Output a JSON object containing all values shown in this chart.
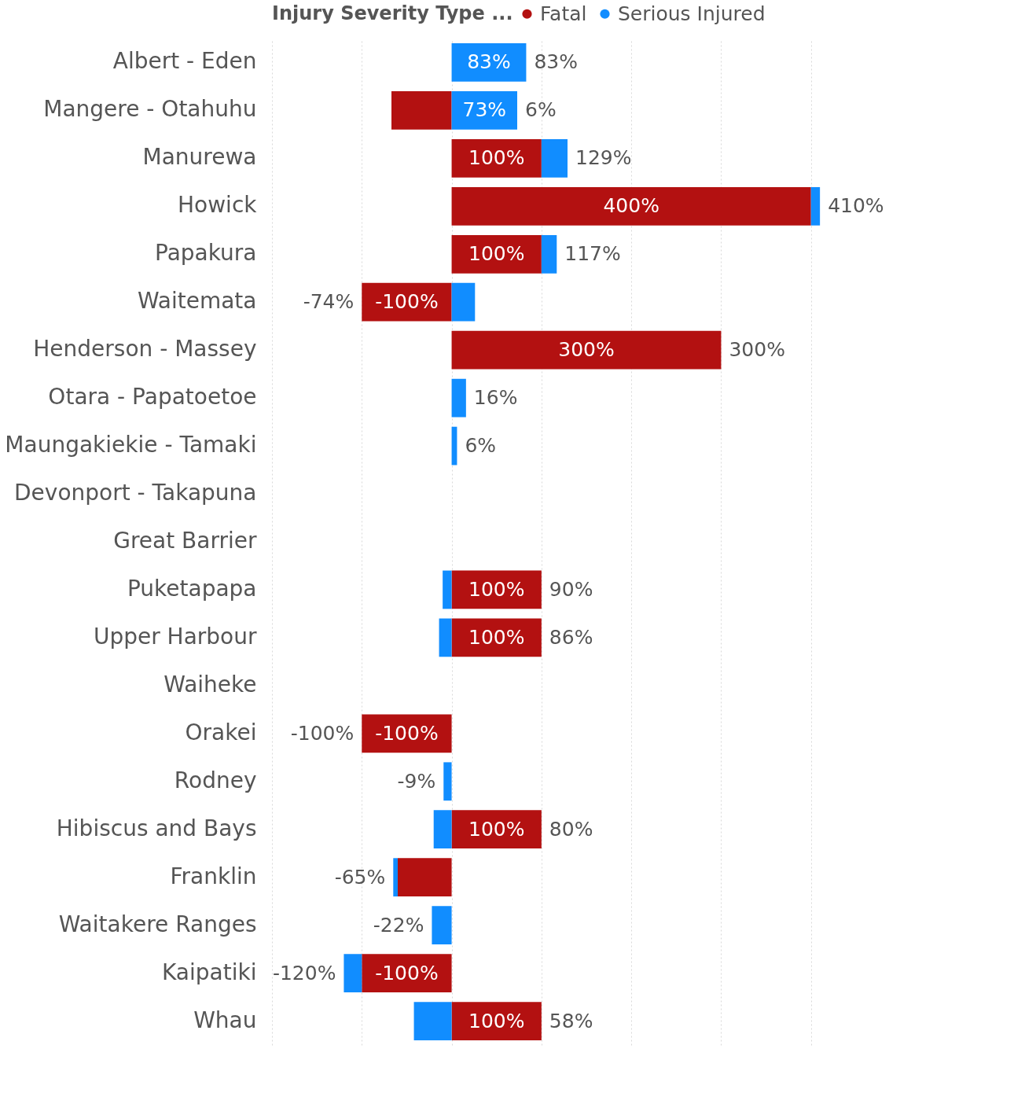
{
  "chart_data": {
    "type": "bar",
    "orientation": "horizontal",
    "stacked": true,
    "legend_title": "Injury Severity Type ...",
    "legend": "top",
    "categories": [
      "Albert - Eden",
      "Mangere - Otahuhu",
      "Manurewa",
      "Howick",
      "Papakura",
      "Waitemata",
      "Henderson - Massey",
      "Otara - Papatoetoe",
      "Maungakiekie - Tamaki",
      "Devonport - Takapuna",
      "Great Barrier",
      "Puketapapa",
      "Upper Harbour",
      "Waiheke",
      "Orakei",
      "Rodney",
      "Hibiscus and Bays",
      "Franklin",
      "Waitakere Ranges",
      "Kaipatiki",
      "Whau"
    ],
    "series": [
      {
        "name": "Fatal",
        "color": "#b31111",
        "values": [
          null,
          -67,
          100,
          400,
          100,
          -100,
          300,
          null,
          null,
          null,
          null,
          100,
          100,
          null,
          -100,
          null,
          100,
          -60,
          null,
          -100,
          100
        ],
        "value_labels": [
          null,
          null,
          "100%",
          "400%",
          "100%",
          "-100%",
          "300%",
          null,
          null,
          null,
          null,
          "100%",
          "100%",
          null,
          "-100%",
          null,
          "100%",
          null,
          null,
          "-100%",
          "100%"
        ]
      },
      {
        "name": "Serious Injured",
        "color": "#118dff",
        "values": [
          83,
          73,
          29,
          10,
          17,
          26,
          null,
          16,
          6,
          null,
          null,
          -10,
          -14,
          null,
          null,
          -9,
          -20,
          -5,
          -22,
          -20,
          -42
        ],
        "value_labels": [
          "83%",
          "73%",
          null,
          null,
          null,
          null,
          null,
          null,
          null,
          null,
          null,
          null,
          null,
          null,
          null,
          null,
          null,
          null,
          null,
          null,
          null
        ]
      }
    ],
    "totals": [
      "83%",
      "6%",
      "129%",
      "410%",
      "117%",
      "-74%",
      "300%",
      "16%",
      "6%",
      null,
      null,
      "90%",
      "86%",
      null,
      "-100%",
      "-9%",
      "80%",
      "-65%",
      "-22%",
      "-120%",
      "58%"
    ],
    "xlim": [
      -200,
      500
    ],
    "xticks": [
      {
        "value": -200,
        "label": null
      },
      {
        "value": -100,
        "label": null
      },
      {
        "value": 0,
        "label": null
      },
      {
        "value": 100,
        "label": null
      },
      {
        "value": 200,
        "label": null
      },
      {
        "value": 300,
        "label": null
      },
      {
        "value": 400,
        "label": null
      }
    ],
    "grid": "x",
    "tick_labels": "y"
  }
}
